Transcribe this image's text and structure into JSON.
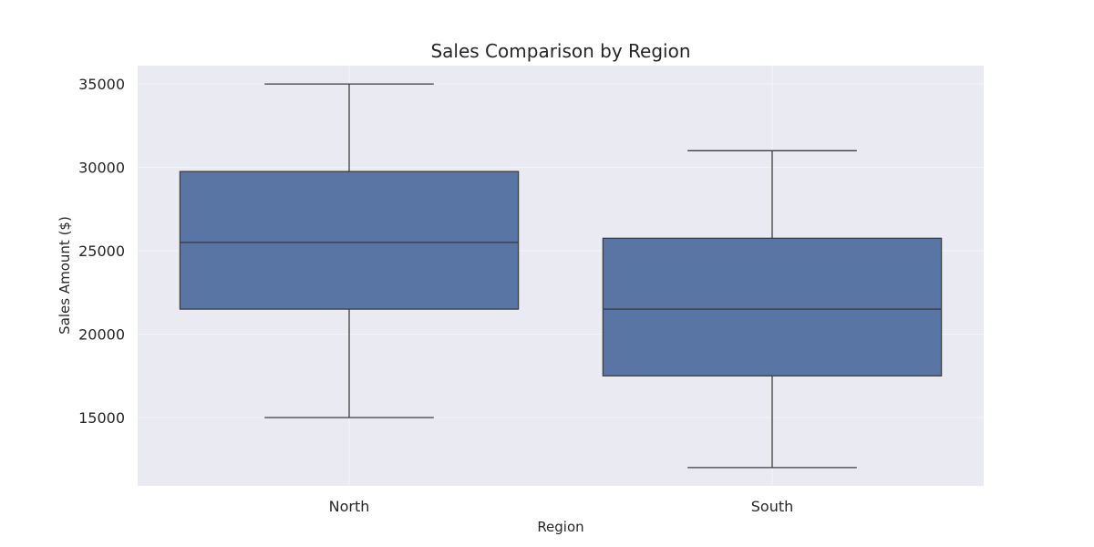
{
  "chart_data": {
    "type": "box",
    "title": "Sales Comparison by Region",
    "xlabel": "Region",
    "ylabel": "Sales Amount ($)",
    "categories": [
      "North",
      "South"
    ],
    "boxes": [
      {
        "category": "North",
        "min": 15000,
        "q1": 21500,
        "median": 25500,
        "q3": 29750,
        "max": 35000
      },
      {
        "category": "South",
        "min": 12000,
        "q1": 17500,
        "median": 21500,
        "q3": 25750,
        "max": 31000
      }
    ],
    "yticks": [
      15000,
      20000,
      25000,
      30000,
      35000
    ],
    "ylim": [
      10900,
      36100
    ],
    "grid": true,
    "legend": "none",
    "colors": {
      "box_fill": "#5875a4",
      "box_line": "#3d3d3d",
      "plot_background": "#eaeaf2",
      "grid": "#f4f4f8"
    }
  }
}
